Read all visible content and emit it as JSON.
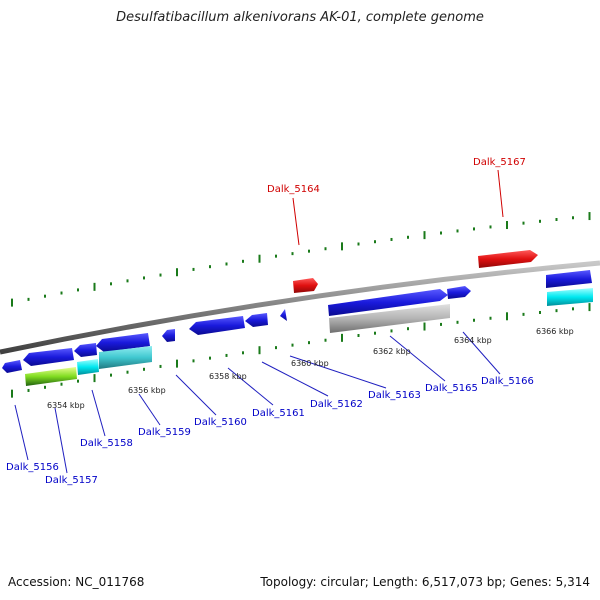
{
  "title": "Desulfatibacillum alkenivorans AK-01, complete genome",
  "footer": {
    "accession": "Accession: NC_011768",
    "summary": "Topology: circular; Length: 6,517,073 bp; Genes: 5,314"
  },
  "colors": {
    "backbone": "#808080",
    "tick": "#1a7a1a",
    "gene_blue": "#1a1adc",
    "gene_red": "#e01010",
    "label_blue": "#0000c8",
    "label_red": "#d00000",
    "cyan": "#00d8e8",
    "teal": "#40c8d0",
    "lime": "#80dc20",
    "gray_feature": "#b4b4b4"
  },
  "scale_labels": [
    "6354 kbp",
    "6356 kbp",
    "6358 kbp",
    "6360 kbp",
    "6362 kbp",
    "6364 kbp",
    "6366 kbp"
  ],
  "gene_labels": [
    {
      "name": "Dalk_5156",
      "strand": "minus"
    },
    {
      "name": "Dalk_5157",
      "strand": "minus"
    },
    {
      "name": "Dalk_5158",
      "strand": "minus"
    },
    {
      "name": "Dalk_5159",
      "strand": "minus"
    },
    {
      "name": "Dalk_5160",
      "strand": "minus"
    },
    {
      "name": "Dalk_5161",
      "strand": "minus"
    },
    {
      "name": "Dalk_5162",
      "strand": "minus"
    },
    {
      "name": "Dalk_5163",
      "strand": "minus"
    },
    {
      "name": "Dalk_5165",
      "strand": "minus"
    },
    {
      "name": "Dalk_5166",
      "strand": "minus"
    },
    {
      "name": "Dalk_5164",
      "strand": "plus"
    },
    {
      "name": "Dalk_5167",
      "strand": "plus"
    }
  ]
}
